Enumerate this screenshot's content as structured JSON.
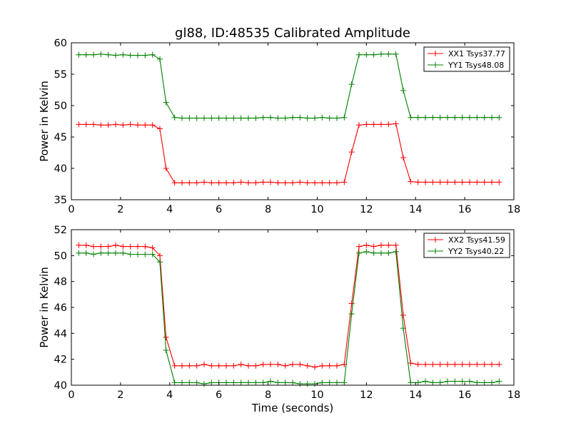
{
  "chart_data": [
    {
      "type": "line",
      "title": "gl88, ID:48535 Calibrated Amplitude",
      "xlabel": "",
      "ylabel": "Power in Kelvin",
      "xlim": [
        0,
        18
      ],
      "ylim": [
        35,
        60
      ],
      "xticks": [
        0,
        2,
        4,
        6,
        8,
        10,
        12,
        14,
        16,
        18
      ],
      "yticks": [
        35,
        40,
        45,
        50,
        55,
        60
      ],
      "grid": false,
      "legend_position": "top-right",
      "x": [
        0.3,
        0.6,
        0.9,
        1.2,
        1.5,
        1.8,
        2.1,
        2.4,
        2.7,
        3.0,
        3.3,
        3.6,
        3.85,
        4.2,
        4.5,
        4.8,
        5.1,
        5.4,
        5.7,
        6.0,
        6.3,
        6.6,
        6.9,
        7.2,
        7.5,
        7.8,
        8.1,
        8.4,
        8.7,
        9.0,
        9.3,
        9.6,
        9.9,
        10.2,
        10.5,
        10.8,
        11.1,
        11.4,
        11.7,
        12.0,
        12.3,
        12.6,
        12.9,
        13.2,
        13.5,
        13.8,
        14.1,
        14.4,
        14.7,
        15.0,
        15.3,
        15.6,
        15.9,
        16.2,
        16.5,
        16.8,
        17.1,
        17.4
      ],
      "series": [
        {
          "name": "XX1 Tsys37.77",
          "color": "#ff0000",
          "values": [
            47.0,
            47.0,
            47.0,
            46.9,
            46.9,
            47.0,
            46.9,
            47.0,
            46.9,
            46.9,
            46.9,
            46.3,
            40.0,
            37.7,
            37.7,
            37.7,
            37.7,
            37.8,
            37.7,
            37.7,
            37.7,
            37.7,
            37.8,
            37.7,
            37.7,
            37.8,
            37.8,
            37.7,
            37.7,
            37.7,
            37.8,
            37.7,
            37.7,
            37.7,
            37.7,
            37.7,
            37.8,
            42.6,
            46.9,
            47.0,
            47.0,
            47.0,
            47.0,
            47.1,
            41.7,
            37.9,
            37.8,
            37.8,
            37.8,
            37.8,
            37.8,
            37.8,
            37.8,
            37.8,
            37.8,
            37.8,
            37.8,
            37.8
          ]
        },
        {
          "name": "YY1 Tsys48.08",
          "color": "#008000",
          "values": [
            58.1,
            58.1,
            58.1,
            58.2,
            58.1,
            58.0,
            58.1,
            58.0,
            58.0,
            58.0,
            58.1,
            57.4,
            50.5,
            48.1,
            48.0,
            48.0,
            48.0,
            48.0,
            48.0,
            48.0,
            48.0,
            48.0,
            48.0,
            48.0,
            48.0,
            48.1,
            48.1,
            48.0,
            48.0,
            48.1,
            48.1,
            48.0,
            48.0,
            48.1,
            48.0,
            48.0,
            48.1,
            53.4,
            58.1,
            58.1,
            58.1,
            58.2,
            58.2,
            58.2,
            52.4,
            48.1,
            48.1,
            48.1,
            48.1,
            48.1,
            48.1,
            48.1,
            48.1,
            48.1,
            48.1,
            48.1,
            48.1,
            48.1
          ]
        }
      ]
    },
    {
      "type": "line",
      "title": "",
      "xlabel": "Time (seconds)",
      "ylabel": "Power in Kelvin",
      "xlim": [
        0,
        18
      ],
      "ylim": [
        40,
        52
      ],
      "xticks": [
        0,
        2,
        4,
        6,
        8,
        10,
        12,
        14,
        16,
        18
      ],
      "yticks": [
        40,
        42,
        44,
        46,
        48,
        50,
        52
      ],
      "grid": false,
      "legend_position": "top-right",
      "x": [
        0.3,
        0.6,
        0.9,
        1.2,
        1.5,
        1.8,
        2.1,
        2.4,
        2.7,
        3.0,
        3.3,
        3.6,
        3.85,
        4.2,
        4.5,
        4.8,
        5.1,
        5.4,
        5.7,
        6.0,
        6.3,
        6.6,
        6.9,
        7.2,
        7.5,
        7.8,
        8.1,
        8.4,
        8.7,
        9.0,
        9.3,
        9.6,
        9.9,
        10.2,
        10.5,
        10.8,
        11.1,
        11.4,
        11.7,
        12.0,
        12.3,
        12.6,
        12.9,
        13.2,
        13.5,
        13.8,
        14.1,
        14.4,
        14.7,
        15.0,
        15.3,
        15.6,
        15.9,
        16.2,
        16.5,
        16.8,
        17.1,
        17.4
      ],
      "series": [
        {
          "name": "XX2 Tsys41.59",
          "color": "#ff0000",
          "values": [
            50.8,
            50.8,
            50.7,
            50.7,
            50.7,
            50.8,
            50.7,
            50.7,
            50.7,
            50.7,
            50.6,
            50.0,
            43.7,
            41.5,
            41.5,
            41.5,
            41.5,
            41.6,
            41.5,
            41.5,
            41.5,
            41.5,
            41.6,
            41.5,
            41.5,
            41.6,
            41.6,
            41.6,
            41.5,
            41.6,
            41.6,
            41.5,
            41.4,
            41.5,
            41.5,
            41.5,
            41.6,
            46.3,
            50.7,
            50.8,
            50.7,
            50.8,
            50.8,
            50.8,
            45.4,
            41.7,
            41.6,
            41.6,
            41.6,
            41.6,
            41.6,
            41.6,
            41.6,
            41.6,
            41.6,
            41.6,
            41.6,
            41.6
          ]
        },
        {
          "name": "YY2 Tsys40.22",
          "color": "#008000",
          "values": [
            50.2,
            50.2,
            50.1,
            50.2,
            50.2,
            50.2,
            50.2,
            50.1,
            50.1,
            50.1,
            50.1,
            49.5,
            42.7,
            40.2,
            40.2,
            40.2,
            40.2,
            40.1,
            40.2,
            40.2,
            40.2,
            40.2,
            40.2,
            40.2,
            40.2,
            40.2,
            40.3,
            40.2,
            40.2,
            40.2,
            40.1,
            40.1,
            40.1,
            40.2,
            40.2,
            40.2,
            40.2,
            45.5,
            50.2,
            50.3,
            50.2,
            50.2,
            50.2,
            50.3,
            44.4,
            40.2,
            40.2,
            40.3,
            40.2,
            40.2,
            40.3,
            40.3,
            40.3,
            40.3,
            40.2,
            40.2,
            40.2,
            40.3
          ]
        }
      ]
    }
  ]
}
